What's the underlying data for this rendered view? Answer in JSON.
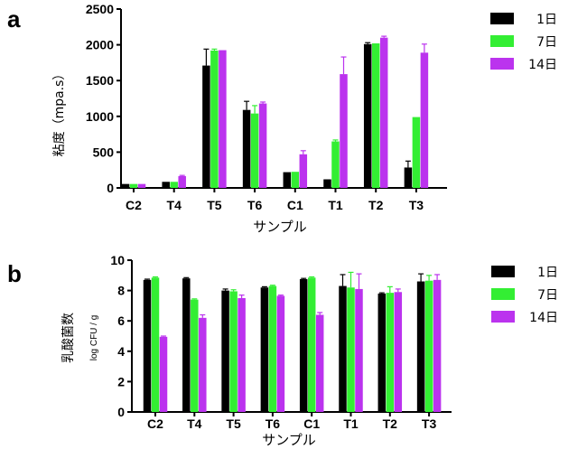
{
  "colors": {
    "1日": "#000000",
    "7日": "#33ee33",
    "14日": "#bb33ee"
  },
  "chart_data": [
    {
      "panel": "a",
      "type": "bar",
      "xlabel": "サンプル",
      "ylabel": "粘度（mpa.s）",
      "ylim": [
        0,
        2500
      ],
      "yticks": [
        0,
        500,
        1000,
        1500,
        2000,
        2500
      ],
      "categories": [
        "C2",
        "T4",
        "T5",
        "T6",
        "C1",
        "T1",
        "T2",
        "T3"
      ],
      "legend_position": "top-right",
      "series": [
        {
          "name": "1日",
          "values": [
            55,
            85,
            1710,
            1090,
            220,
            120,
            2010,
            285
          ],
          "errors": [
            0,
            0,
            230,
            120,
            0,
            0,
            20,
            90
          ]
        },
        {
          "name": "7日",
          "values": [
            55,
            85,
            1920,
            1040,
            225,
            650,
            2020,
            990
          ],
          "errors": [
            0,
            0,
            20,
            110,
            0,
            20,
            0,
            0
          ]
        },
        {
          "name": "14日",
          "values": [
            55,
            165,
            1925,
            1180,
            470,
            1590,
            2100,
            1890
          ],
          "errors": [
            0,
            10,
            0,
            20,
            50,
            240,
            20,
            120
          ]
        }
      ]
    },
    {
      "panel": "b",
      "type": "bar",
      "xlabel": "サンプル",
      "ylabel": "乳酸菌数",
      "ylabel2": "log CFU / g",
      "ylim": [
        0,
        10
      ],
      "yticks": [
        0,
        2,
        4,
        6,
        8,
        10
      ],
      "categories": [
        "C2",
        "T4",
        "T5",
        "T6",
        "C1",
        "T1",
        "T2",
        "T3"
      ],
      "legend_position": "top-right",
      "series": [
        {
          "name": "1日",
          "values": [
            8.7,
            8.8,
            8.0,
            8.2,
            8.75,
            8.3,
            7.8,
            8.6
          ],
          "errors": [
            0.05,
            0.05,
            0.1,
            0.05,
            0.05,
            0.75,
            0.05,
            0.5
          ]
        },
        {
          "name": "7日",
          "values": [
            8.85,
            7.4,
            7.95,
            8.3,
            8.85,
            8.2,
            7.85,
            8.65
          ],
          "errors": [
            0.05,
            0.05,
            0.1,
            0.05,
            0.05,
            1.0,
            0.4,
            0.35
          ]
        },
        {
          "name": "14日",
          "values": [
            4.95,
            6.2,
            7.5,
            7.65,
            6.4,
            8.1,
            7.9,
            8.7
          ],
          "errors": [
            0.05,
            0.2,
            0.2,
            0.05,
            0.15,
            1.0,
            0.2,
            0.35
          ]
        }
      ]
    }
  ]
}
